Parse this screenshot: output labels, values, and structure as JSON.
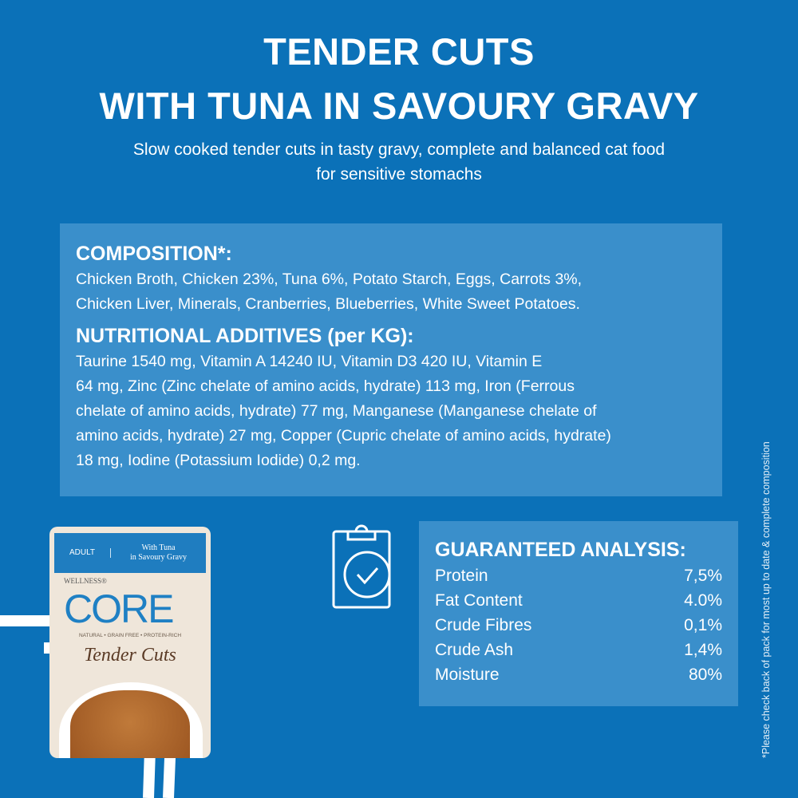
{
  "header": {
    "title_line1": "TENDER CUTS",
    "title_line2": "WITH TUNA IN SAVOURY GRAVY",
    "subtitle_line1": "Slow cooked tender cuts in tasty gravy, complete and balanced cat food",
    "subtitle_line2": "for sensitive stomachs"
  },
  "composition": {
    "heading": "COMPOSITION*:",
    "lines": [
      "Chicken Broth, Chicken 23%, Tuna 6%, Potato Starch, Eggs, Carrots 3%,",
      "Chicken Liver, Minerals, Cranberries, Blueberries, White Sweet Potatoes."
    ]
  },
  "additives": {
    "heading": "NUTRITIONAL ADDITIVES (per KG):",
    "lines": [
      "Taurine 1540 mg, Vitamin A 14240 IU, Vitamin D3 420 IU, Vitamin E",
      "64 mg, Zinc (Zinc chelate of amino acids, hydrate) 113 mg, Iron (Ferrous",
      "chelate of amino acids, hydrate) 77 mg, Manganese (Manganese chelate of",
      "amino acids, hydrate) 27 mg, Copper (Cupric chelate of amino acids, hydrate)",
      "18 mg, Iodine (Potassium Iodide) 0,2 mg."
    ]
  },
  "analysis": {
    "heading": "GUARANTEED ANALYSIS:",
    "rows": [
      {
        "label": "Protein",
        "value": "7,5%"
      },
      {
        "label": "Fat Content",
        "value": "4.0%"
      },
      {
        "label": "Crude Fibres",
        "value": "0,1%"
      },
      {
        "label": "Crude Ash",
        "value": "1,4%"
      },
      {
        "label": "Moisture",
        "value": "80%"
      }
    ]
  },
  "footnote": "*Please check back of pack for most up to date & complete composition",
  "pouch": {
    "adult": "ADULT",
    "flavor_line1": "With Tuna",
    "flavor_line2": "in Savoury Gravy",
    "brand_small": "WELLNESS®",
    "brand": "CORE",
    "tagline": "NATURAL • GRAIN FREE • PROTEIN-RICH",
    "product": "Tender Cuts"
  },
  "icons": {
    "clipboard": "clipboard-check-icon"
  },
  "colors": {
    "background": "#0b71b8",
    "panel": "#3a8fcb",
    "text": "#ffffff"
  }
}
